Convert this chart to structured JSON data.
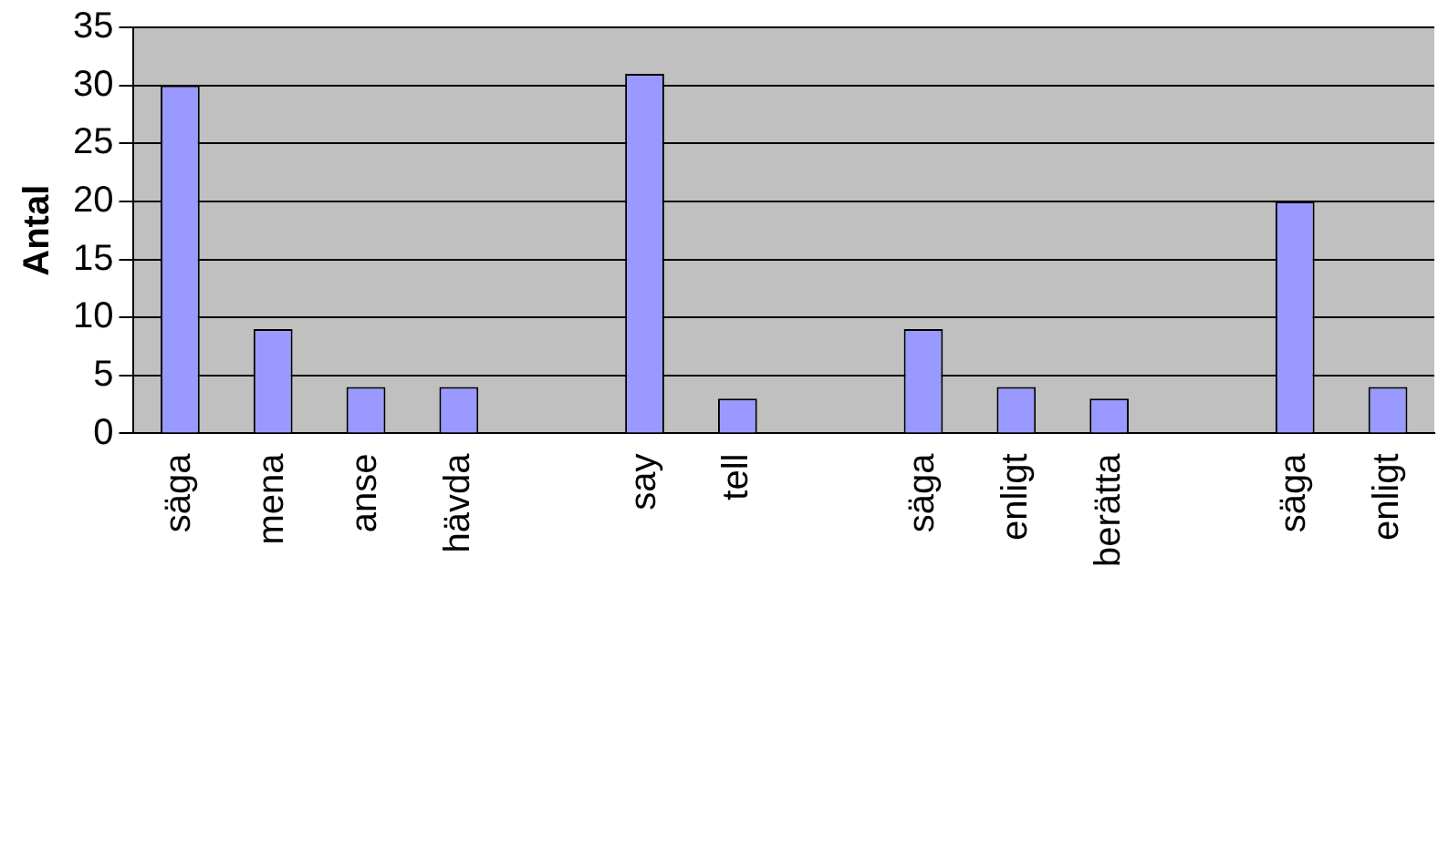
{
  "chart_data": {
    "type": "bar",
    "ylabel": "Antal",
    "categories": [
      "säga",
      "mena",
      "anse",
      "hävda",
      null,
      "say",
      "tell",
      null,
      "säga",
      "enligt",
      "berätta",
      null,
      "säga",
      "enligt"
    ],
    "values": [
      30,
      9,
      4,
      4,
      null,
      31,
      3,
      null,
      9,
      4,
      3,
      null,
      20,
      4
    ],
    "color": "#9999ff",
    "ylim": [
      0,
      35
    ],
    "yticks": [
      0,
      5,
      10,
      15,
      20,
      25,
      30,
      35
    ],
    "grid": "y",
    "legend": false
  }
}
